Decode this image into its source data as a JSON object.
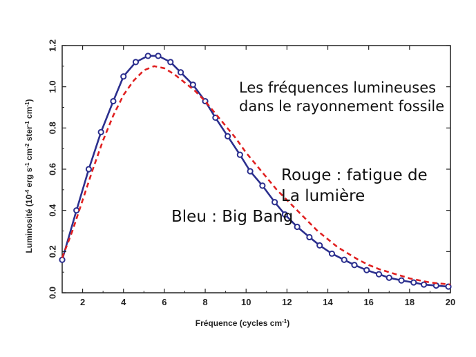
{
  "chart_data": {
    "type": "line",
    "xlabel": "Fréquence (cycles cm",
    "xlabel_sup": "-1",
    "xlabel_end": ")",
    "ylabel_parts": [
      {
        "t": "Luminosité (10",
        "sup": false
      },
      {
        "t": "-4",
        "sup": true
      },
      {
        "t": " erg s",
        "sup": false
      },
      {
        "t": "-1",
        "sup": true
      },
      {
        "t": " cm",
        "sup": false
      },
      {
        "t": "-2",
        "sup": true
      },
      {
        "t": " ster",
        "sup": false
      },
      {
        "t": "-1",
        "sup": true
      },
      {
        "t": " cm",
        "sup": false
      },
      {
        "t": "-1",
        "sup": true
      },
      {
        "t": ")",
        "sup": false
      }
    ],
    "xlim": [
      1,
      20
    ],
    "ylim": [
      0,
      1.2
    ],
    "x_ticks": [
      2,
      4,
      6,
      8,
      10,
      12,
      14,
      16,
      18,
      20
    ],
    "x_tick_labels": [
      "2",
      "4",
      "6",
      "8",
      "10",
      "12",
      "14",
      "16",
      "18",
      "20"
    ],
    "y_ticks": [
      0,
      0.2,
      0.4,
      0.6,
      0.8,
      1.0,
      1.2
    ],
    "y_tick_labels": [
      "0.0",
      "0.2",
      "0.4",
      "0.6",
      "0.8",
      "1.0",
      "1.2"
    ],
    "grid": false,
    "series": [
      {
        "style": "solid-with-circle-markers",
        "color": "#2b2f8e",
        "x": [
          1.0,
          1.7,
          2.3,
          2.9,
          3.5,
          4.0,
          4.6,
          5.2,
          5.7,
          6.3,
          6.8,
          7.4,
          8.0,
          8.5,
          9.1,
          9.7,
          10.2,
          10.8,
          11.4,
          11.9,
          12.5,
          13.1,
          13.6,
          14.2,
          14.8,
          15.3,
          15.9,
          16.5,
          17.0,
          17.6,
          18.2,
          18.7,
          19.3,
          19.9
        ],
        "y": [
          0.16,
          0.4,
          0.6,
          0.78,
          0.93,
          1.05,
          1.12,
          1.15,
          1.15,
          1.12,
          1.07,
          1.01,
          0.93,
          0.85,
          0.76,
          0.67,
          0.59,
          0.52,
          0.44,
          0.38,
          0.32,
          0.27,
          0.23,
          0.19,
          0.16,
          0.135,
          0.11,
          0.09,
          0.073,
          0.06,
          0.05,
          0.04,
          0.035,
          0.03
        ]
      },
      {
        "style": "dashed",
        "color": "#e02020",
        "x": [
          1.0,
          1.5,
          2.0,
          2.5,
          3.0,
          3.5,
          4.0,
          4.5,
          5.0,
          5.5,
          6.0,
          6.5,
          7.0,
          7.5,
          8.0,
          8.5,
          9.0,
          9.5,
          10.0,
          10.5,
          11.0,
          11.5,
          12.0,
          12.5,
          13.0,
          13.5,
          14.0,
          14.5,
          15.0,
          15.5,
          16.0,
          16.5,
          17.0,
          17.5,
          18.0,
          18.5,
          19.0,
          19.5,
          20.0
        ],
        "y": [
          0.17,
          0.3,
          0.45,
          0.6,
          0.74,
          0.86,
          0.96,
          1.03,
          1.08,
          1.1,
          1.09,
          1.06,
          1.02,
          0.98,
          0.93,
          0.87,
          0.81,
          0.75,
          0.68,
          0.62,
          0.56,
          0.5,
          0.45,
          0.4,
          0.35,
          0.3,
          0.26,
          0.22,
          0.19,
          0.16,
          0.135,
          0.115,
          0.1,
          0.085,
          0.07,
          0.06,
          0.05,
          0.045,
          0.04
        ]
      }
    ],
    "annotations": {
      "title_line1": "Les fréquences lumineuses",
      "title_line2": "dans le rayonnement fossile",
      "red_line1": "Rouge : fatigue de",
      "red_line2": "La lumière",
      "blue": "Bleu : Big Bang"
    }
  }
}
